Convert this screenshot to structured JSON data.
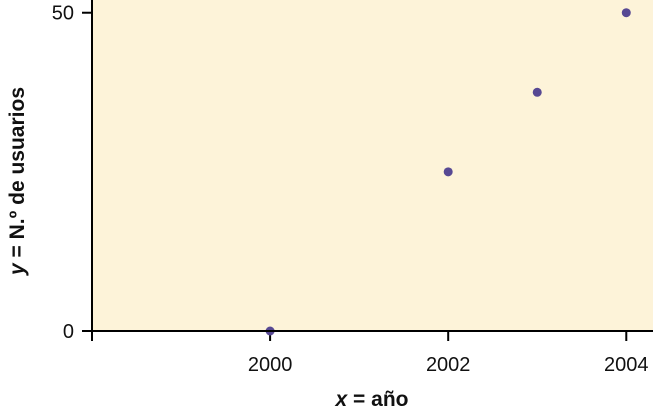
{
  "chart_data": {
    "type": "scatter",
    "title": "",
    "x": [
      2000,
      2002,
      2003,
      2004
    ],
    "y": [
      0,
      25,
      37.5,
      50
    ],
    "xlim": [
      1998,
      2004.3
    ],
    "ylim": [
      0,
      52
    ],
    "x_ticks": [
      2000,
      2002,
      2004
    ],
    "x_tick_labels": [
      "2000",
      "2002",
      "2004"
    ],
    "y_ticks": [
      0,
      50
    ],
    "y_tick_labels": [
      "0",
      "50"
    ],
    "xlabel": {
      "var": "x",
      "rest": " = año"
    },
    "ylabel": {
      "var": "y",
      "rest": " = N.º de usuarios"
    },
    "grid": false,
    "legend": "none",
    "colors": {
      "plot_background": "#fdf3d9",
      "point": "#574893",
      "axis": "#000000"
    }
  }
}
